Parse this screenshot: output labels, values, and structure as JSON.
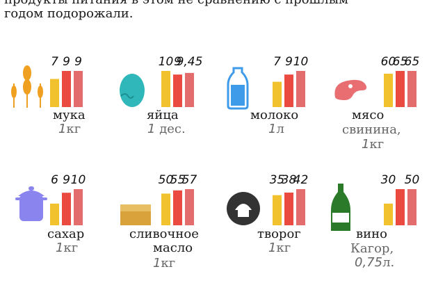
{
  "header": {
    "line1": "продукты питания в этом не сравнению с прошлым",
    "line2": "годом подорожали."
  },
  "colors": {
    "bar1": "#f2c12e",
    "bar2": "#ea4a40",
    "bar3": "#e36c6c"
  },
  "products": [
    {
      "name": "мука",
      "unit_num": "1",
      "unit_text": "кг",
      "extra": "",
      "price_labels": [
        "7",
        "9",
        "9"
      ],
      "icon": "wheat-icon",
      "icon_color": "#f0a020",
      "chart_data": {
        "type": "bar",
        "series": [
          {
            "values": [
              7,
              9,
              9
            ]
          }
        ]
      }
    },
    {
      "name": "яйца",
      "unit_num": "1",
      "unit_text": "дес.",
      "extra": "",
      "price_labels": [
        "10",
        "9",
        "9,45"
      ],
      "icon": "egg-icon",
      "icon_color": "#2fb7b9",
      "chart_data": {
        "type": "bar",
        "series": [
          {
            "values": [
              10,
              9,
              9.45
            ]
          }
        ]
      }
    },
    {
      "name": "молоко",
      "unit_num": "1",
      "unit_text": "л",
      "extra": "",
      "price_labels": [
        "7",
        "9",
        "10"
      ],
      "icon": "milk-bottle-icon",
      "icon_color": "#3d9be9",
      "chart_data": {
        "type": "bar",
        "series": [
          {
            "values": [
              7,
              9,
              10
            ]
          }
        ]
      }
    },
    {
      "name": "мясо",
      "unit_num": "1",
      "unit_text": "кг",
      "extra": "свинина,",
      "price_labels": [
        "60",
        "65",
        "65"
      ],
      "icon": "meat-icon",
      "icon_color": "#e86e72",
      "chart_data": {
        "type": "bar",
        "series": [
          {
            "values": [
              60,
              65,
              65
            ]
          }
        ]
      }
    },
    {
      "name": "сахар",
      "unit_num": "1",
      "unit_text": "кг",
      "extra": "",
      "price_labels": [
        "6",
        "9",
        "10"
      ],
      "icon": "pot-icon",
      "icon_color": "#8a84ee",
      "chart_data": {
        "type": "bar",
        "series": [
          {
            "values": [
              6,
              9,
              10
            ]
          }
        ]
      }
    },
    {
      "name": "сливочное",
      "name2": "масло",
      "unit_num": "1",
      "unit_text": "кг",
      "extra": "",
      "price_labels": [
        "50",
        "55",
        "57"
      ],
      "icon": "butter-icon",
      "icon_color": "#d9a23a",
      "chart_data": {
        "type": "bar",
        "series": [
          {
            "values": [
              50,
              55,
              57
            ]
          }
        ]
      }
    },
    {
      "name": "творог",
      "unit_num": "1",
      "unit_text": "кг",
      "extra": "",
      "price_labels": [
        "35",
        "38",
        "42"
      ],
      "icon": "cottage-cheese-icon",
      "icon_color": "#333333",
      "chart_data": {
        "type": "bar",
        "series": [
          {
            "values": [
              35,
              38,
              42
            ]
          }
        ]
      }
    },
    {
      "name": "вино",
      "unit_num": "0,75",
      "unit_text": "л.",
      "extra": "Кагор,",
      "price_labels": [
        "30",
        "",
        "50"
      ],
      "icon": "wine-bottle-icon",
      "icon_color": "#2a7a2a",
      "chart_data": {
        "type": "bar",
        "series": [
          {
            "values": [
              30,
              50,
              50
            ]
          }
        ]
      }
    }
  ]
}
